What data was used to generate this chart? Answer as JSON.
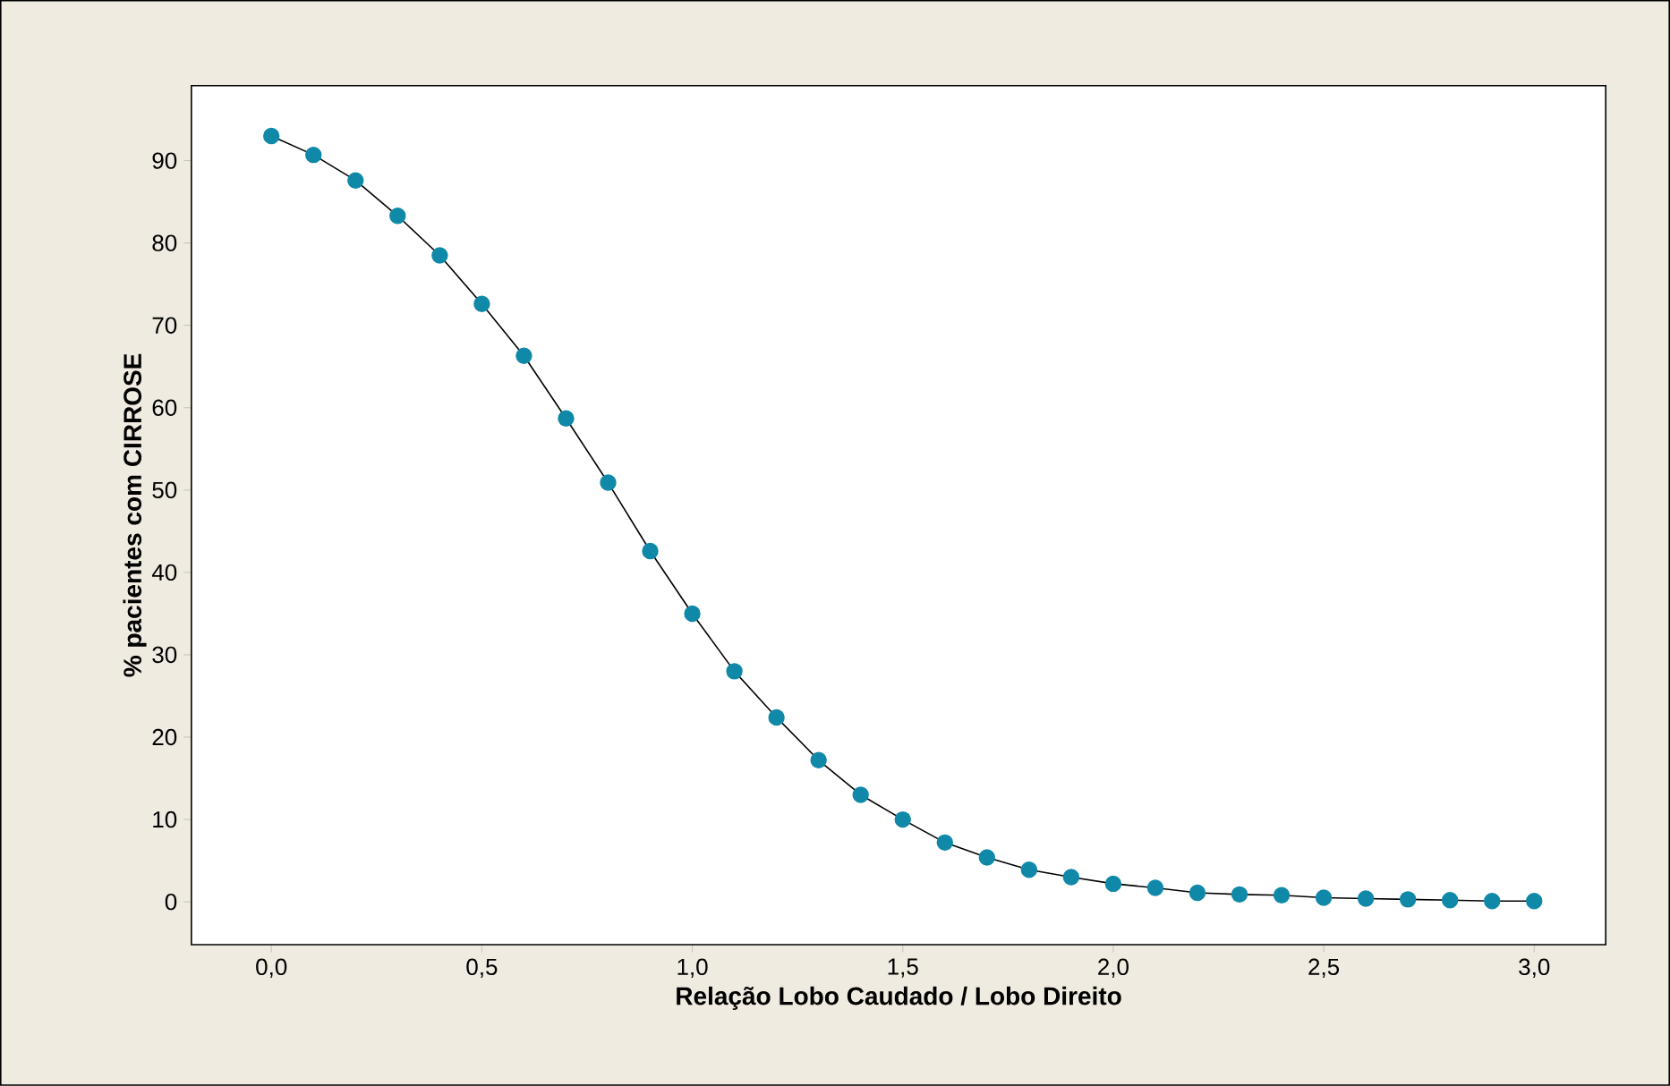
{
  "chart_data": {
    "type": "line",
    "xlabel": "Relação Lobo Caudado / Lobo Direito",
    "ylabel": "% pacientes com CIRROSE",
    "x": [
      0.0,
      0.1,
      0.2,
      0.3,
      0.4,
      0.5,
      0.6,
      0.7,
      0.8,
      0.9,
      1.0,
      1.1,
      1.2,
      1.3,
      1.4,
      1.5,
      1.6,
      1.7,
      1.8,
      1.9,
      2.0,
      2.1,
      2.2,
      2.3,
      2.4,
      2.5,
      2.6,
      2.7,
      2.8,
      2.9,
      3.0
    ],
    "series": [
      {
        "color": "#000000",
        "values": [
          93.0,
          90.7,
          87.6,
          83.3,
          78.5,
          72.6,
          66.3,
          58.7,
          50.9,
          42.6,
          35.0,
          28.0,
          22.4,
          17.2,
          13.0,
          10.0,
          7.2,
          5.4,
          3.9,
          3.0,
          2.2,
          1.7,
          1.1,
          0.9,
          0.8,
          0.5,
          0.4,
          0.3,
          0.2,
          0.1,
          0.1
        ]
      }
    ],
    "marker": "circle",
    "line_style": "solid",
    "xlim": [
      -0.19,
      3.17
    ],
    "ylim": [
      -5.2,
      99.1
    ],
    "xticks": [
      {
        "value": 0.0,
        "label": "0,0"
      },
      {
        "value": 0.5,
        "label": "0,5"
      },
      {
        "value": 1.0,
        "label": "1,0"
      },
      {
        "value": 1.5,
        "label": "1,5"
      },
      {
        "value": 2.0,
        "label": "2,0"
      },
      {
        "value": 2.5,
        "label": "2,5"
      },
      {
        "value": 3.0,
        "label": "3,0"
      }
    ],
    "yticks": [
      0,
      10,
      20,
      30,
      40,
      50,
      60,
      70,
      80,
      90
    ]
  }
}
